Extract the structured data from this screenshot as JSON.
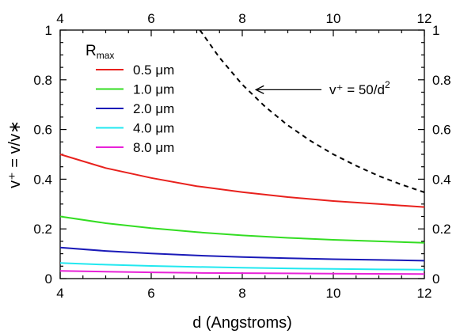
{
  "chart_data": {
    "type": "line",
    "xlabel": "d  (Angstroms)",
    "ylabel": "v⁺ = v/v∗",
    "xlim": [
      4,
      12
    ],
    "ylim": [
      0,
      1
    ],
    "x_ticks": [
      "4",
      "6",
      "8",
      "10",
      "12"
    ],
    "y_ticks": [
      "0",
      "0.2",
      "0.4",
      "0.6",
      "0.8",
      "1"
    ],
    "top_x_ticks": [
      "4",
      "6",
      "8",
      "10",
      "12"
    ],
    "right_y_ticks": [
      "0",
      "0.2",
      "0.4",
      "0.6",
      "0.8",
      "1"
    ],
    "grid": false,
    "legend": {
      "title_main": "R",
      "title_sub": "max",
      "placement": "top-left"
    },
    "x": [
      4,
      5,
      6,
      7,
      8,
      9,
      10,
      11,
      12
    ],
    "series": [
      {
        "name": "0.5 μm",
        "color": "#e8211d",
        "values": [
          0.5,
          0.445,
          0.405,
          0.372,
          0.348,
          0.328,
          0.312,
          0.3,
          0.288
        ]
      },
      {
        "name": "1.0 μm",
        "color": "#33dd22",
        "values": [
          0.25,
          0.223,
          0.203,
          0.187,
          0.174,
          0.164,
          0.156,
          0.15,
          0.144
        ]
      },
      {
        "name": "2.0 μm",
        "color": "#1a1ab8",
        "values": [
          0.125,
          0.111,
          0.101,
          0.093,
          0.087,
          0.082,
          0.078,
          0.075,
          0.072
        ]
      },
      {
        "name": "4.0 μm",
        "color": "#22e8f0",
        "values": [
          0.063,
          0.056,
          0.051,
          0.047,
          0.044,
          0.041,
          0.039,
          0.037,
          0.036
        ]
      },
      {
        "name": "8.0 μm",
        "color": "#e822d8",
        "values": [
          0.031,
          0.028,
          0.025,
          0.023,
          0.022,
          0.021,
          0.02,
          0.019,
          0.018
        ]
      }
    ],
    "reference_curve": {
      "style": "dashed",
      "color": "#000000",
      "x": [
        7.07,
        7.5,
        8,
        8.5,
        9,
        9.5,
        10,
        10.5,
        11,
        11.5,
        12
      ],
      "values": [
        1.0,
        0.889,
        0.781,
        0.692,
        0.617,
        0.554,
        0.5,
        0.454,
        0.413,
        0.378,
        0.347
      ]
    },
    "annotation": {
      "text_main": "v⁺ = 50/d",
      "text_sup": "2",
      "arrow_to": [
        8.3,
        0.76
      ]
    }
  }
}
